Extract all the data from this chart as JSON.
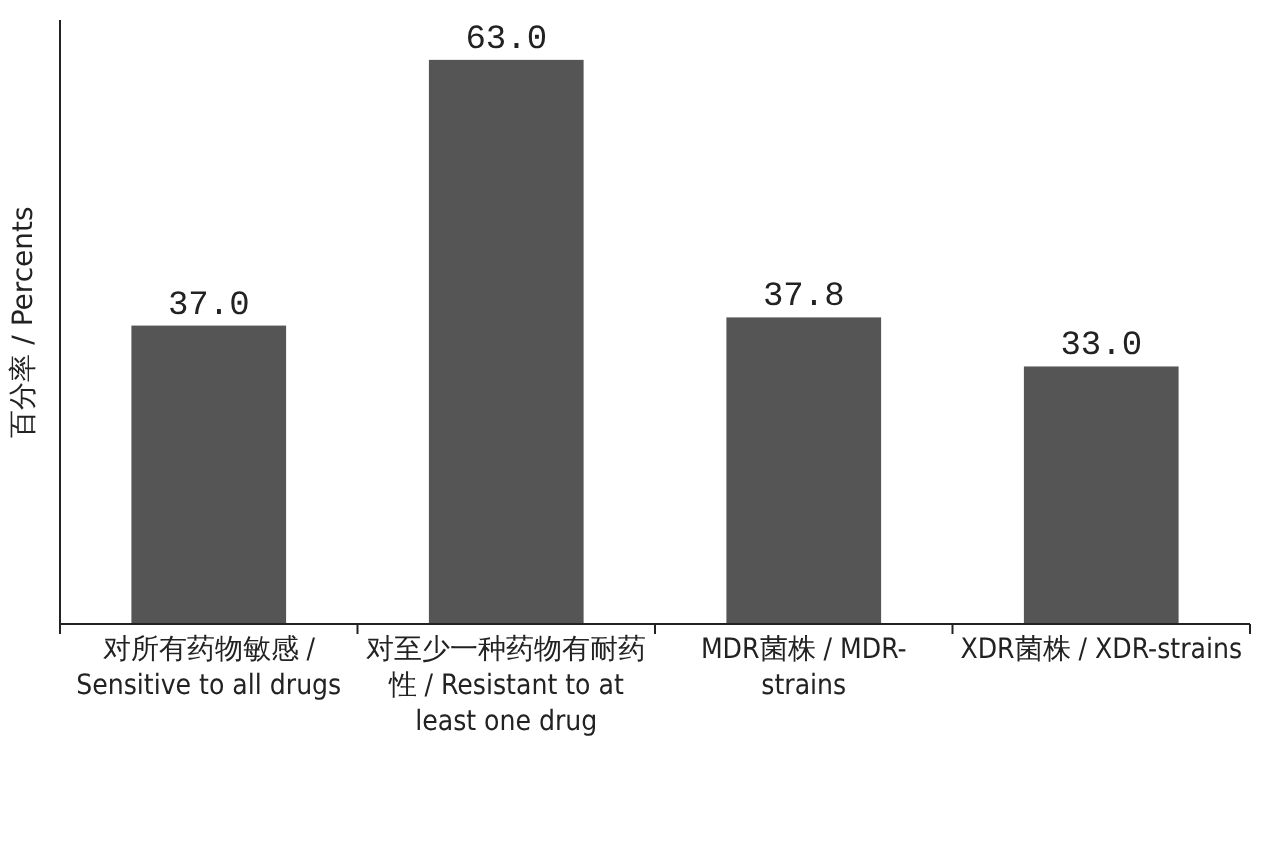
{
  "chart_data": {
    "type": "bar",
    "ylabel": "百分率 / Percents",
    "categories": [
      "对所有药物敏感 / Sensitive to all drugs",
      "对至少一种药物有耐药性 / Resistant to at least one drug",
      "MDR菌株 / MDR-strains",
      "XDR菌株 / XDR-strains"
    ],
    "values": [
      37.0,
      63.0,
      37.8,
      33.0
    ],
    "value_labels": [
      "37.0",
      "63.0",
      "37.8",
      "33.0"
    ],
    "color": "#555555",
    "ylim": [
      7.8,
      66.9
    ],
    "tick_labels": "x"
  }
}
